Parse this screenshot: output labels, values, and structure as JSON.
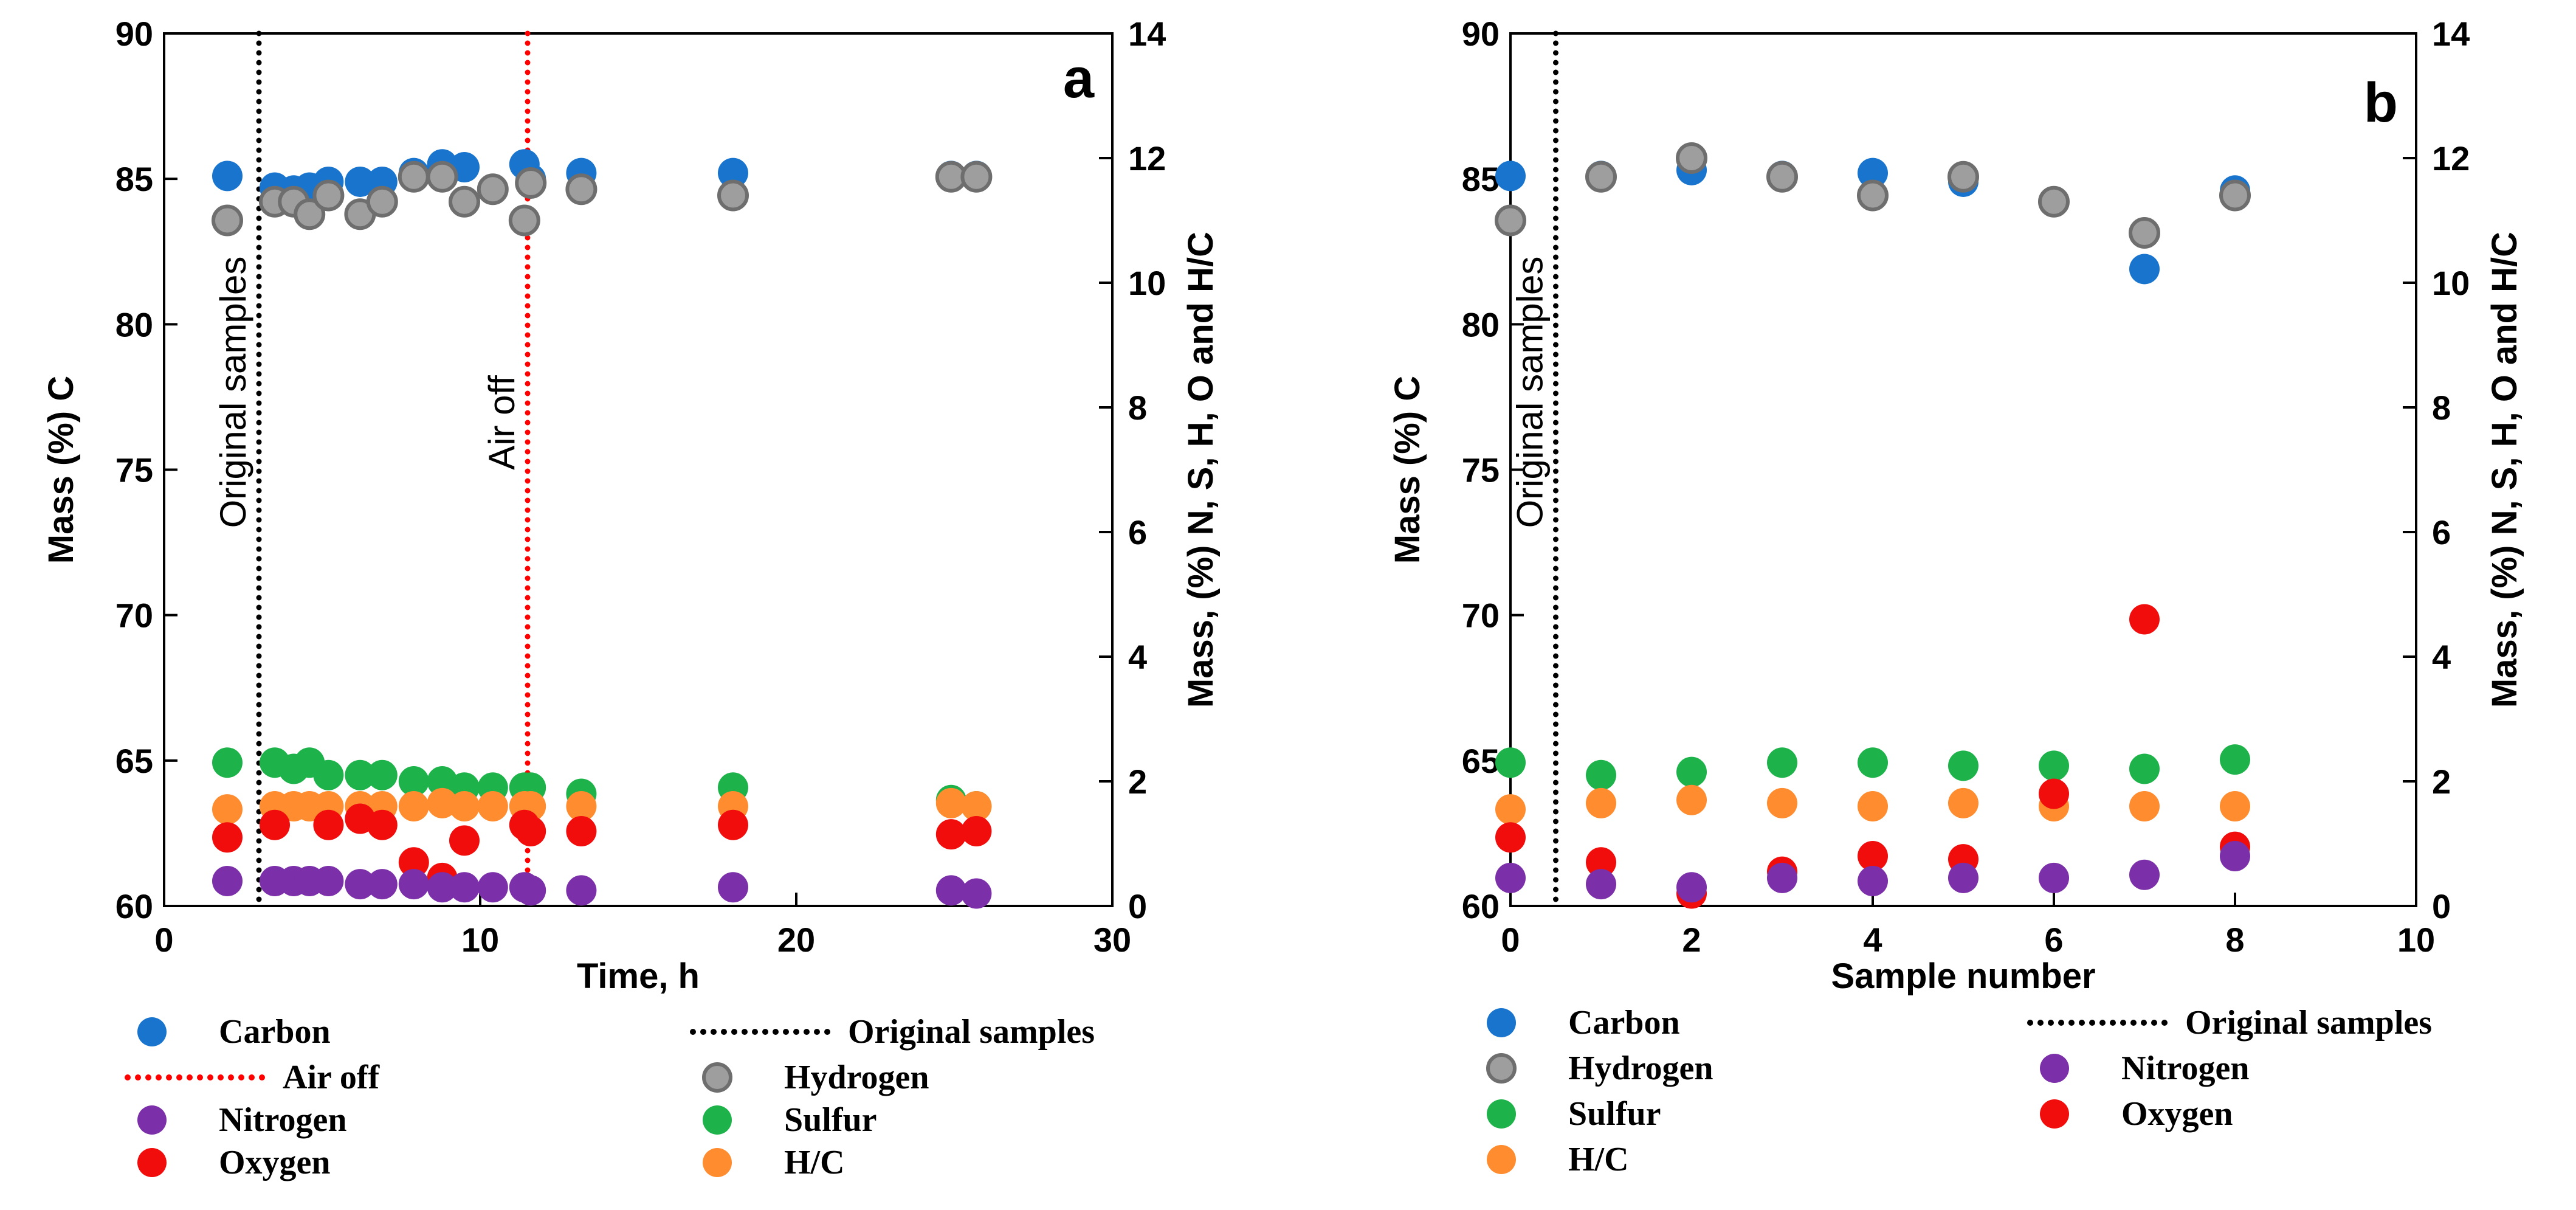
{
  "colors": {
    "carbon": "#1874CD",
    "hydrogen": "#9E9E9E",
    "nitrogen": "#7B2FA8",
    "sulfur": "#1DB34A",
    "oxygen": "#F20D0D",
    "hc": "#FF8C2E",
    "original_line": "#000000",
    "air_off_line": "#FF0000"
  },
  "chart_data": [
    {
      "type": "scatter",
      "panel_label": "a",
      "xlabel": "Time, h",
      "ylabel_left": "Mass (%) C",
      "ylabel_right": "Mass, (%) N, S, H, O and H/C",
      "xlim": [
        0,
        30
      ],
      "ylim_left": [
        60,
        90
      ],
      "ylim_right": [
        0,
        14
      ],
      "xticks": [
        0,
        10,
        20,
        30
      ],
      "yticks_left": [
        60,
        65,
        70,
        75,
        80,
        85,
        90
      ],
      "yticks_right": [
        0,
        2,
        4,
        6,
        8,
        10,
        12,
        14
      ],
      "vlines": [
        {
          "key": "original",
          "x": 3.0,
          "label": "Original samples",
          "style": "dotted",
          "color": "#000000"
        },
        {
          "key": "airoff",
          "x": 11.5,
          "label": "Air off",
          "style": "dotted",
          "color": "#FF0000"
        }
      ],
      "series": [
        {
          "name": "Carbon",
          "key": "carbon",
          "axis": "left",
          "x": [
            2,
            3.5,
            4.1,
            4.6,
            5.2,
            6.2,
            6.9,
            7.9,
            8.8,
            9.5,
            11.4,
            11.6,
            13.2,
            18.0,
            24.9,
            25.7
          ],
          "y": [
            85.1,
            84.7,
            84.6,
            84.7,
            84.9,
            84.9,
            84.9,
            85.2,
            85.5,
            85.4,
            85.5,
            85.0,
            85.2,
            85.2,
            85.1,
            85.1
          ]
        },
        {
          "name": "Hydrogen",
          "key": "hydrogen",
          "axis": "right",
          "x": [
            2,
            3.5,
            4.1,
            4.6,
            5.2,
            6.2,
            6.9,
            7.9,
            8.8,
            9.5,
            10.4,
            11.4,
            11.6,
            13.2,
            18.0,
            24.9,
            25.7
          ],
          "y": [
            11.0,
            11.3,
            11.3,
            11.1,
            11.4,
            11.1,
            11.3,
            11.7,
            11.7,
            11.3,
            11.5,
            11.0,
            11.6,
            11.5,
            11.4,
            11.7,
            11.7
          ]
        },
        {
          "name": "Sulfur",
          "key": "sulfur",
          "axis": "right",
          "x": [
            2,
            3.5,
            4.1,
            4.6,
            5.2,
            6.2,
            6.9,
            7.9,
            8.8,
            9.5,
            10.4,
            11.4,
            11.6,
            13.2,
            18.0,
            24.9,
            25.7
          ],
          "y": [
            2.3,
            2.3,
            2.2,
            2.3,
            2.1,
            2.1,
            2.1,
            2.0,
            2.0,
            1.9,
            1.9,
            1.9,
            1.9,
            1.8,
            1.9,
            1.7,
            1.6
          ]
        },
        {
          "name": "H/C",
          "key": "hc",
          "axis": "right",
          "x": [
            2,
            3.5,
            4.1,
            4.6,
            5.2,
            6.2,
            6.9,
            7.9,
            8.8,
            9.5,
            10.4,
            11.4,
            11.6,
            13.2,
            18.0,
            24.9,
            25.7
          ],
          "y": [
            1.55,
            1.6,
            1.6,
            1.6,
            1.6,
            1.6,
            1.6,
            1.6,
            1.65,
            1.6,
            1.6,
            1.6,
            1.6,
            1.6,
            1.6,
            1.65,
            1.6
          ]
        },
        {
          "name": "Oxygen",
          "key": "oxygen",
          "axis": "right",
          "x": [
            2,
            3.5,
            5.2,
            6.2,
            6.9,
            7.9,
            8.8,
            9.5,
            11.4,
            11.6,
            13.2,
            18.0,
            24.9,
            25.7
          ],
          "y": [
            1.1,
            1.3,
            1.3,
            1.4,
            1.3,
            0.7,
            0.45,
            1.05,
            1.3,
            1.2,
            1.2,
            1.3,
            1.15,
            1.2
          ]
        },
        {
          "name": "Nitrogen",
          "key": "nitrogen",
          "axis": "right",
          "x": [
            2,
            3.5,
            4.1,
            4.6,
            5.2,
            6.2,
            6.9,
            7.9,
            8.8,
            9.5,
            10.4,
            11.4,
            11.6,
            13.2,
            18.0,
            24.9,
            25.7
          ],
          "y": [
            0.4,
            0.4,
            0.4,
            0.4,
            0.4,
            0.35,
            0.35,
            0.35,
            0.3,
            0.3,
            0.3,
            0.3,
            0.25,
            0.25,
            0.3,
            0.25,
            0.2
          ]
        }
      ],
      "legend": {
        "columns": [
          [
            {
              "type": "marker",
              "key": "carbon",
              "label": "Carbon"
            },
            {
              "type": "line",
              "key": "airoff",
              "label": "Air off"
            },
            {
              "type": "marker",
              "key": "nitrogen",
              "label": "Nitrogen"
            },
            {
              "type": "marker",
              "key": "oxygen",
              "label": "Oxygen"
            }
          ],
          [
            {
              "type": "line",
              "key": "original",
              "label": "Original samples"
            },
            {
              "type": "marker",
              "key": "hydrogen",
              "label": "Hydrogen"
            },
            {
              "type": "marker",
              "key": "sulfur",
              "label": "Sulfur"
            },
            {
              "type": "marker",
              "key": "hc",
              "label": "H/C"
            }
          ]
        ]
      }
    },
    {
      "type": "scatter",
      "panel_label": "b",
      "xlabel": "Sample number",
      "ylabel_left": "Mass (%) C",
      "ylabel_right": "Mass, (%) N, S, H, O and H/C",
      "xlim": [
        0,
        10
      ],
      "ylim_left": [
        60,
        90
      ],
      "ylim_right": [
        0,
        14
      ],
      "xticks": [
        0,
        2,
        4,
        6,
        8,
        10
      ],
      "yticks_left": [
        60,
        65,
        70,
        75,
        80,
        85,
        90
      ],
      "yticks_right": [
        0,
        2,
        4,
        6,
        8,
        10,
        12,
        14
      ],
      "vlines": [
        {
          "key": "original",
          "x": 0.5,
          "label": "Original samples",
          "style": "dotted",
          "color": "#000000"
        }
      ],
      "series": [
        {
          "name": "Carbon",
          "key": "carbon",
          "axis": "left",
          "x": [
            0,
            1,
            2,
            3,
            4,
            5,
            6,
            7,
            8
          ],
          "y": [
            85.1,
            85.1,
            85.3,
            85.1,
            85.2,
            84.9,
            84.2,
            81.9,
            84.6
          ]
        },
        {
          "name": "Hydrogen",
          "key": "hydrogen",
          "axis": "right",
          "x": [
            0,
            1,
            2,
            3,
            4,
            5,
            6,
            7,
            8
          ],
          "y": [
            11.0,
            11.7,
            12.0,
            11.7,
            11.4,
            11.7,
            11.3,
            10.8,
            11.4
          ]
        },
        {
          "name": "Sulfur",
          "key": "sulfur",
          "axis": "right",
          "x": [
            0,
            1,
            2,
            3,
            4,
            5,
            6,
            7,
            8
          ],
          "y": [
            2.3,
            2.1,
            2.15,
            2.3,
            2.3,
            2.25,
            2.25,
            2.2,
            2.35
          ]
        },
        {
          "name": "H/C",
          "key": "hc",
          "axis": "right",
          "x": [
            0,
            1,
            2,
            3,
            4,
            5,
            6,
            7,
            8
          ],
          "y": [
            1.55,
            1.65,
            1.7,
            1.65,
            1.6,
            1.65,
            1.6,
            1.6,
            1.6
          ]
        },
        {
          "name": "Oxygen",
          "key": "oxygen",
          "axis": "right",
          "x": [
            0,
            1,
            2,
            3,
            4,
            5,
            6,
            7,
            8
          ],
          "y": [
            1.1,
            0.7,
            0.2,
            0.55,
            0.8,
            0.75,
            1.8,
            4.6,
            0.95
          ]
        },
        {
          "name": "Nitrogen",
          "key": "nitrogen",
          "axis": "right",
          "x": [
            0,
            1,
            2,
            3,
            4,
            5,
            6,
            7,
            8
          ],
          "y": [
            0.45,
            0.35,
            0.3,
            0.45,
            0.4,
            0.45,
            0.45,
            0.5,
            0.8
          ]
        }
      ],
      "legend": {
        "columns": [
          [
            {
              "type": "marker",
              "key": "carbon",
              "label": "Carbon"
            },
            {
              "type": "marker",
              "key": "hydrogen",
              "label": "Hydrogen"
            },
            {
              "type": "marker",
              "key": "sulfur",
              "label": "Sulfur"
            },
            {
              "type": "marker",
              "key": "hc",
              "label": "H/C"
            }
          ],
          [
            {
              "type": "line",
              "key": "original",
              "label": "Original samples"
            },
            {
              "type": "marker",
              "key": "nitrogen",
              "label": "Nitrogen"
            },
            {
              "type": "marker",
              "key": "oxygen",
              "label": "Oxygen"
            }
          ]
        ]
      }
    }
  ]
}
